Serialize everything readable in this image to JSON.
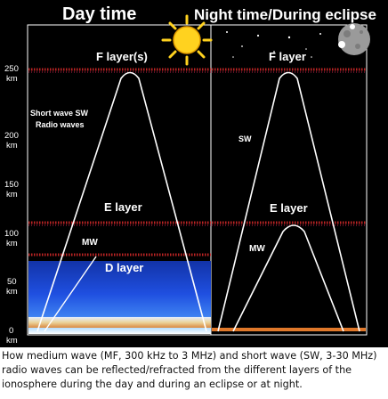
{
  "header": {
    "day_title": "Day time",
    "night_title": "Night time/During eclipse"
  },
  "axis": {
    "ticks": [
      {
        "value": "250",
        "unit": "km"
      },
      {
        "value": "200",
        "unit": "km"
      },
      {
        "value": "150",
        "unit": "km"
      },
      {
        "value": "100",
        "unit": "km"
      },
      {
        "value": "50",
        "unit": "km"
      },
      {
        "value": "0",
        "unit": "km"
      }
    ]
  },
  "day_panel": {
    "f_layer_label": "F layer(s)",
    "sw_label_line1": "Short wave SW",
    "sw_label_line2": "Radio waves",
    "e_layer_label": "E layer",
    "mw_label": "MW",
    "d_layer_label": "D layer",
    "icon": "sun-icon"
  },
  "night_panel": {
    "f_layer_label": "F layer",
    "sw_label": "SW",
    "e_layer_label": "E layer",
    "mw_label": "MW",
    "icon": "moon-icon"
  },
  "colors": {
    "background": "#000000",
    "layer_dots": "#d42a2a",
    "wave_line": "#ffffff",
    "sun": "#ffd21f",
    "d_layer": "#1f4fe0",
    "ground_night": "#e0782a"
  },
  "caption": "How medium wave (MF, 300 kHz to 3 MHz) and short wave (SW, 3-30 MHz) radio waves can be reflected/refracted from the different layers of the ionosphere during the day and during an eclipse or at night."
}
